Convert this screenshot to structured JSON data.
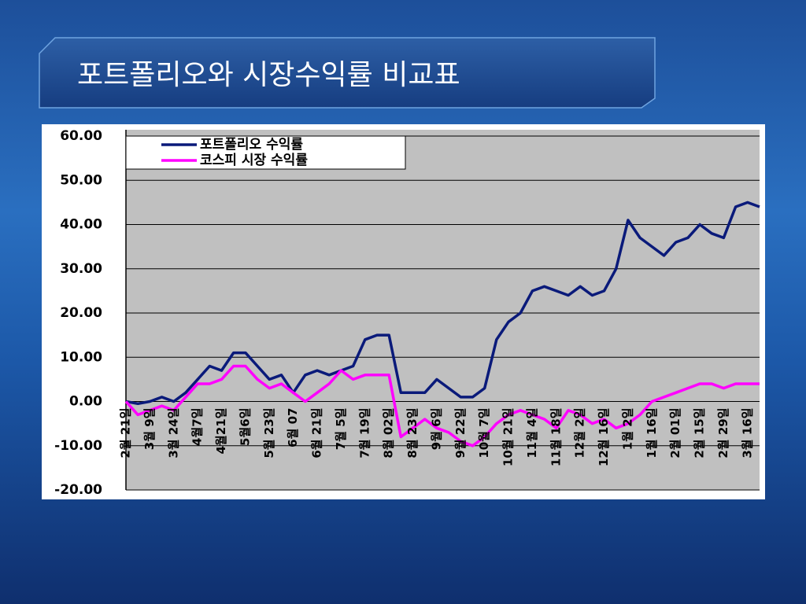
{
  "chart_data": {
    "type": "line",
    "title": "포트폴리오와 시장수익률 비교표",
    "categories": [
      "2월 21일",
      null,
      "3월 9일",
      null,
      "3월 24일",
      null,
      "4월7일",
      null,
      "4월21일",
      null,
      "5월6일",
      null,
      "5월 23일",
      null,
      "6월 07",
      null,
      "6월 21일",
      null,
      "7월 5일",
      null,
      "7월 19일",
      null,
      "8월 02일",
      null,
      "8월 23일",
      null,
      "9월 6일",
      null,
      "9월 22일",
      null,
      "10월 7일",
      null,
      "10월 21일",
      null,
      "11월 4일",
      null,
      "11월 18일",
      null,
      "12월 2일",
      null,
      "12월 16일",
      null,
      "1월 2일",
      null,
      "1월 16일",
      null,
      "2월 01일",
      null,
      "2월 15일",
      null,
      "2월 29일",
      null,
      "3월 16일",
      null
    ],
    "series": [
      {
        "name": "포트폴리오 수익률",
        "color": "#0a1a7a",
        "values": [
          0,
          -0.5,
          0,
          1,
          0,
          2,
          5,
          8,
          7,
          11,
          11,
          8,
          5,
          6,
          2,
          6,
          7,
          6,
          7,
          8,
          14,
          15,
          15,
          2,
          2,
          2,
          5,
          3,
          1,
          1,
          3,
          14,
          18,
          20,
          25,
          26,
          25,
          24,
          26,
          24,
          25,
          30,
          41,
          37,
          35,
          33,
          36,
          37,
          40,
          38,
          37,
          44,
          45,
          44
        ]
      },
      {
        "name": "코스피 시장 수익률",
        "color": "#ff00ff",
        "values": [
          0,
          -3,
          -2,
          -1,
          -2,
          1,
          4,
          4,
          5,
          8,
          8,
          5,
          3,
          4,
          2,
          0,
          2,
          4,
          7,
          5,
          6,
          6,
          6,
          -8,
          -6,
          -4,
          -6,
          -7,
          -9,
          -10,
          -8,
          -5,
          -3,
          -2,
          -3,
          -4,
          -6,
          -2,
          -3,
          -5,
          -4,
          -6,
          -5,
          -3,
          0,
          1,
          2,
          3,
          4,
          4,
          3,
          4,
          4,
          4
        ]
      }
    ],
    "ylim": [
      -20,
      60
    ],
    "yticks": [
      {
        "value": -20,
        "label": "-20.00"
      },
      {
        "value": -10,
        "label": "-10.00"
      },
      {
        "value": 0,
        "label": "0.00"
      },
      {
        "value": 10,
        "label": "10.00"
      },
      {
        "value": 20,
        "label": "20.00"
      },
      {
        "value": 30,
        "label": "30.00"
      },
      {
        "value": 40,
        "label": "40.00"
      },
      {
        "value": 50,
        "label": "50.00"
      },
      {
        "value": 60,
        "label": "60.00"
      }
    ],
    "grid": true,
    "legend": "top-left"
  }
}
